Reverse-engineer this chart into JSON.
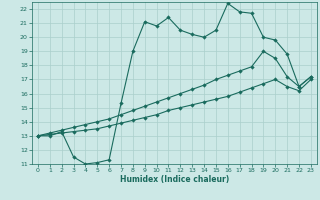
{
  "xlabel": "Humidex (Indice chaleur)",
  "bg_color": "#cce8e6",
  "line_color": "#1a6b5e",
  "grid_color": "#aacfcc",
  "xlim": [
    -0.5,
    23.5
  ],
  "ylim": [
    11,
    22.5
  ],
  "xticks": [
    0,
    1,
    2,
    3,
    4,
    5,
    6,
    7,
    8,
    9,
    10,
    11,
    12,
    13,
    14,
    15,
    16,
    17,
    18,
    19,
    20,
    21,
    22,
    23
  ],
  "yticks": [
    11,
    12,
    13,
    14,
    15,
    16,
    17,
    18,
    19,
    20,
    21,
    22
  ],
  "line_wavy_x": [
    0,
    1,
    2,
    3,
    4,
    5,
    6,
    7,
    8,
    9,
    10,
    11,
    12,
    13,
    14,
    15,
    16,
    17,
    18,
    19,
    20,
    21,
    22,
    23
  ],
  "line_wavy_y": [
    13.0,
    13.0,
    13.3,
    11.5,
    11.0,
    11.1,
    11.3,
    15.3,
    19.0,
    21.1,
    20.8,
    21.4,
    20.5,
    20.2,
    20.0,
    20.5,
    22.4,
    21.8,
    21.7,
    20.0,
    19.8,
    18.8,
    16.5,
    17.2
  ],
  "line_upper_x": [
    0,
    1,
    2,
    3,
    4,
    5,
    6,
    7,
    8,
    9,
    10,
    11,
    12,
    13,
    14,
    15,
    16,
    17,
    18,
    19,
    20,
    21,
    22,
    23
  ],
  "line_upper_y": [
    13.0,
    13.2,
    13.4,
    13.6,
    13.8,
    14.0,
    14.2,
    14.5,
    14.8,
    15.1,
    15.4,
    15.7,
    16.0,
    16.3,
    16.6,
    17.0,
    17.3,
    17.6,
    17.9,
    19.0,
    18.5,
    17.2,
    16.5,
    17.2
  ],
  "line_lower_x": [
    0,
    1,
    2,
    3,
    4,
    5,
    6,
    7,
    8,
    9,
    10,
    11,
    12,
    13,
    14,
    15,
    16,
    17,
    18,
    19,
    20,
    21,
    22,
    23
  ],
  "line_lower_y": [
    13.0,
    13.1,
    13.2,
    13.3,
    13.4,
    13.5,
    13.7,
    13.9,
    14.1,
    14.3,
    14.5,
    14.8,
    15.0,
    15.2,
    15.4,
    15.6,
    15.8,
    16.1,
    16.4,
    16.7,
    17.0,
    16.5,
    16.2,
    17.0
  ]
}
